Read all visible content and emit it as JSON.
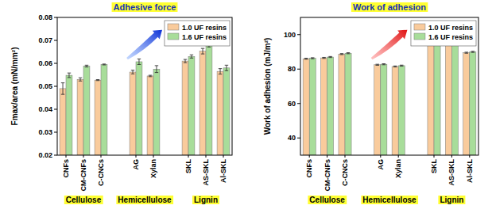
{
  "chart_data": [
    {
      "type": "bar",
      "title": "Adhesive force",
      "y_label": "Fmax/area (mN/mm²)",
      "categories": [
        "CNFs",
        "CM-CNFs",
        "C-CNCs",
        null,
        "AG",
        "Xylan",
        null,
        "SKL",
        "AS-SKL",
        "Al-SKL"
      ],
      "annotations": [
        "Cellulose",
        "Hemicellulose",
        "Lignin"
      ],
      "series": [
        {
          "name": "1.0 UF resins",
          "color": "#f9cb9c",
          "values": [
            0.049,
            0.053,
            0.0527,
            null,
            0.0562,
            0.0545,
            null,
            0.061,
            0.0653,
            0.0565
          ],
          "errors": [
            0.0025,
            0.0007,
            0.0002,
            null,
            0.0008,
            0.0003,
            null,
            0.0007,
            0.0012,
            0.0012
          ]
        },
        {
          "name": "1.6 UF resins",
          "color": "#a8dd9a",
          "values": [
            0.0548,
            0.0588,
            0.0595,
            null,
            0.0607,
            0.0575,
            null,
            0.063,
            0.0683,
            0.058
          ],
          "errors": [
            0.001,
            0.0004,
            0.0002,
            null,
            0.0012,
            0.0015,
            null,
            0.0007,
            0.0012,
            0.0012
          ]
        }
      ],
      "ylim": [
        0.02,
        0.08
      ],
      "yticks": [
        0.02,
        0.03,
        0.04,
        0.05,
        0.06,
        0.07,
        0.08
      ],
      "grid": false,
      "legend": "upper right"
    },
    {
      "type": "bar",
      "title": "Work of adhesion",
      "y_label": "Work of adhesion (mJ/m²)",
      "categories": [
        "CNFs",
        "CM-CNFs",
        "C-CNCs",
        null,
        "AG",
        "Xylan",
        null,
        "SKL",
        "AS-SKL",
        "Al-SKL"
      ],
      "annotations": [
        "Cellulose",
        "Hemicellulose",
        "Lignin"
      ],
      "series": [
        {
          "name": "1.0 UF resins",
          "color": "#f9cb9c",
          "values": [
            86,
            86.5,
            88.7,
            null,
            82.5,
            81.5,
            null,
            94.3,
            95.6,
            89.5
          ],
          "errors": [
            0.3,
            0.3,
            0.3,
            null,
            0.3,
            0.3,
            null,
            0.3,
            0.4,
            0.3
          ]
        },
        {
          "name": "1.6 UF resins",
          "color": "#a8dd9a",
          "values": [
            86.3,
            87,
            89.2,
            null,
            82.8,
            82,
            null,
            94.6,
            95.9,
            90
          ],
          "errors": [
            0.3,
            0.3,
            0.3,
            null,
            0.3,
            0.3,
            null,
            0.3,
            0.4,
            0.3
          ]
        }
      ],
      "ylim": [
        30,
        110
      ],
      "yticks": [
        40,
        60,
        80,
        100
      ],
      "grid": false,
      "legend": "upper right"
    }
  ]
}
